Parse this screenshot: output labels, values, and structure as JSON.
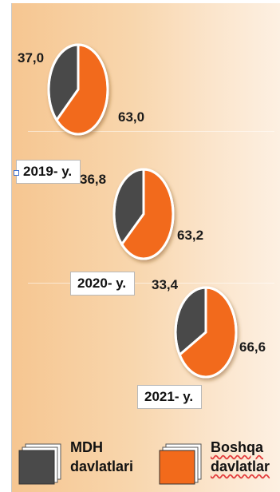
{
  "chart_data": {
    "type": "pie",
    "legend": [
      {
        "line1": "MDH",
        "line2": "davlatlari",
        "color": "#4a4a4a"
      },
      {
        "line1": "Boshqa",
        "line2": "davlatlar",
        "color": "#f26a1b"
      }
    ],
    "pies": [
      {
        "year_label": "2019- y.",
        "slices": [
          {
            "label": "37,0",
            "value": 37.0,
            "color": "#4a4a4a"
          },
          {
            "label": "63,0",
            "value": 63.0,
            "color": "#f26a1b"
          }
        ]
      },
      {
        "year_label": "2020- y.",
        "slices": [
          {
            "label": "36,8",
            "value": 36.8,
            "color": "#4a4a4a"
          },
          {
            "label": "63,2",
            "value": 63.2,
            "color": "#f26a1b"
          }
        ]
      },
      {
        "year_label": "2021- y.",
        "slices": [
          {
            "label": "33,4",
            "value": 33.4,
            "color": "#4a4a4a"
          },
          {
            "label": "66,6",
            "value": 66.6,
            "color": "#f26a1b"
          }
        ]
      }
    ]
  }
}
